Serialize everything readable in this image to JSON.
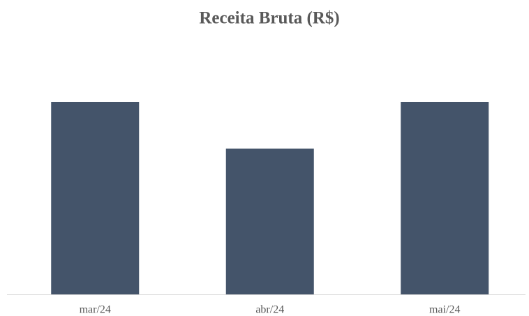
{
  "chart_data": {
    "type": "bar",
    "title": "Receita Bruta (R$)",
    "categories": [
      "mar/24",
      "abr/24",
      "mai/24"
    ],
    "values": [
      276,
      209,
      276
    ],
    "color": "#44546a",
    "ylim": [
      0,
      300
    ]
  }
}
